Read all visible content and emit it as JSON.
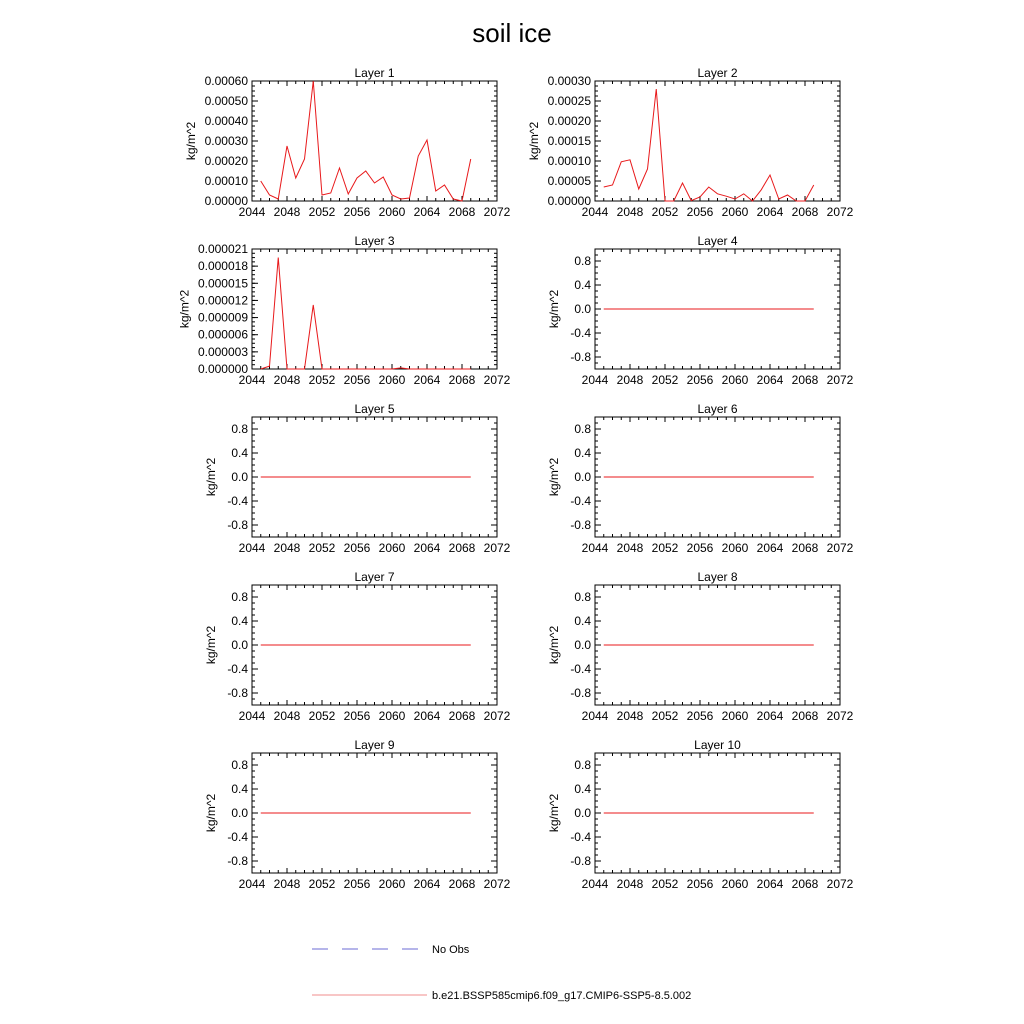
{
  "title": "soil ice",
  "chart_data": [
    {
      "type": "line",
      "title": "Layer 1",
      "ylabel": "kg/m^2",
      "xlim": [
        2044,
        2072
      ],
      "ylim": [
        0,
        0.0006
      ],
      "xticks": [
        "2044",
        "2048",
        "2052",
        "2056",
        "2060",
        "2064",
        "2068",
        "2072"
      ],
      "yticks": [
        "0.00000",
        "0.00010",
        "0.00020",
        "0.00030",
        "0.00040",
        "0.00050",
        "0.00060"
      ],
      "x": [
        2045,
        2046,
        2047,
        2048,
        2049,
        2050,
        2051,
        2052,
        2053,
        2054,
        2055,
        2056,
        2057,
        2058,
        2059,
        2060,
        2061,
        2062,
        2063,
        2064,
        2065,
        2066,
        2067,
        2068,
        2069
      ],
      "series": [
        {
          "name": "b.e21.BSSP585cmip6.f09_g17.CMIP6-SSP5-8.5.002",
          "color": "#e8191b",
          "values": [
            0.0001,
            3e-05,
            1e-05,
            0.000275,
            0.000115,
            0.00021,
            0.0006,
            3e-05,
            4e-05,
            0.000165,
            3.5e-05,
            0.000115,
            0.00015,
            9e-05,
            0.00012,
            3e-05,
            1e-05,
            1.5e-05,
            0.000225,
            0.000305,
            5e-05,
            8e-05,
            1e-05,
            0.0,
            0.00021
          ]
        }
      ]
    },
    {
      "type": "line",
      "title": "Layer 2",
      "ylabel": "kg/m^2",
      "xlim": [
        2044,
        2072
      ],
      "ylim": [
        0,
        0.0003
      ],
      "xticks": [
        "2044",
        "2048",
        "2052",
        "2056",
        "2060",
        "2064",
        "2068",
        "2072"
      ],
      "yticks": [
        "0.00000",
        "0.00005",
        "0.00010",
        "0.00015",
        "0.00020",
        "0.00025",
        "0.00030"
      ],
      "x": [
        2045,
        2046,
        2047,
        2048,
        2049,
        2050,
        2051,
        2052,
        2053,
        2054,
        2055,
        2056,
        2057,
        2058,
        2059,
        2060,
        2061,
        2062,
        2063,
        2064,
        2065,
        2066,
        2067,
        2068,
        2069
      ],
      "series": [
        {
          "name": "b.e21.BSSP585cmip6.f09_g17.CMIP6-SSP5-8.5.002",
          "color": "#e8191b",
          "values": [
            3.5e-05,
            4e-05,
            9.8e-05,
            0.000103,
            3e-05,
            8e-05,
            0.00028,
            0.0,
            0.0,
            4.5e-05,
            1e-06,
            1e-05,
            3.5e-05,
            1.8e-05,
            1.2e-05,
            5e-06,
            1.8e-05,
            0.0,
            2.8e-05,
            6.5e-05,
            5e-06,
            1.5e-05,
            0.0,
            0.0,
            4e-05
          ]
        }
      ]
    },
    {
      "type": "line",
      "title": "Layer 3",
      "ylabel": "kg/m^2",
      "xlim": [
        2044,
        2072
      ],
      "ylim": [
        0,
        2.1e-05
      ],
      "xticks": [
        "2044",
        "2048",
        "2052",
        "2056",
        "2060",
        "2064",
        "2068",
        "2072"
      ],
      "yticks": [
        "0.000000",
        "0.000003",
        "0.000006",
        "0.000009",
        "0.000012",
        "0.000015",
        "0.000018",
        "0.000021"
      ],
      "x": [
        2045,
        2046,
        2047,
        2048,
        2049,
        2050,
        2051,
        2052,
        2053,
        2054,
        2055,
        2056,
        2057,
        2058,
        2059,
        2060,
        2061,
        2062,
        2063,
        2064,
        2065,
        2066,
        2067,
        2068,
        2069
      ],
      "series": [
        {
          "name": "b.e21.BSSP585cmip6.f09_g17.CMIP6-SSP5-8.5.002",
          "color": "#e8191b",
          "values": [
            0.0,
            5e-07,
            1.95e-05,
            0.0,
            0.0,
            0.0,
            1.12e-05,
            0.0,
            0.0,
            0.0,
            0.0,
            0.0,
            0.0,
            0.0,
            0.0,
            0.0,
            2e-07,
            0.0,
            0.0,
            0.0,
            0.0,
            0.0,
            0.0,
            0.0,
            0.0
          ]
        }
      ]
    },
    {
      "type": "line",
      "title": "Layer 4",
      "ylabel": "kg/m^2",
      "xlim": [
        2044,
        2072
      ],
      "ylim": [
        -1,
        1
      ],
      "xticks": [
        "2044",
        "2048",
        "2052",
        "2056",
        "2060",
        "2064",
        "2068",
        "2072"
      ],
      "yticks": [
        "-0.8",
        "-0.4",
        "0.0",
        "0.4",
        "0.8"
      ],
      "x": [
        2045,
        2069
      ],
      "series": [
        {
          "name": "b.e21.BSSP585cmip6.f09_g17.CMIP6-SSP5-8.5.002",
          "color": "#e8191b",
          "values": [
            0,
            0
          ]
        }
      ]
    },
    {
      "type": "line",
      "title": "Layer 5",
      "ylabel": "kg/m^2",
      "xlim": [
        2044,
        2072
      ],
      "ylim": [
        -1,
        1
      ],
      "xticks": [
        "2044",
        "2048",
        "2052",
        "2056",
        "2060",
        "2064",
        "2068",
        "2072"
      ],
      "yticks": [
        "-0.8",
        "-0.4",
        "0.0",
        "0.4",
        "0.8"
      ],
      "x": [
        2045,
        2069
      ],
      "series": [
        {
          "name": "b.e21.BSSP585cmip6.f09_g17.CMIP6-SSP5-8.5.002",
          "color": "#e8191b",
          "values": [
            0,
            0
          ]
        }
      ]
    },
    {
      "type": "line",
      "title": "Layer 6",
      "ylabel": "kg/m^2",
      "xlim": [
        2044,
        2072
      ],
      "ylim": [
        -1,
        1
      ],
      "xticks": [
        "2044",
        "2048",
        "2052",
        "2056",
        "2060",
        "2064",
        "2068",
        "2072"
      ],
      "yticks": [
        "-0.8",
        "-0.4",
        "0.0",
        "0.4",
        "0.8"
      ],
      "x": [
        2045,
        2069
      ],
      "series": [
        {
          "name": "b.e21.BSSP585cmip6.f09_g17.CMIP6-SSP5-8.5.002",
          "color": "#e8191b",
          "values": [
            0,
            0
          ]
        }
      ]
    },
    {
      "type": "line",
      "title": "Layer 7",
      "ylabel": "kg/m^2",
      "xlim": [
        2044,
        2072
      ],
      "ylim": [
        -1,
        1
      ],
      "xticks": [
        "2044",
        "2048",
        "2052",
        "2056",
        "2060",
        "2064",
        "2068",
        "2072"
      ],
      "yticks": [
        "-0.8",
        "-0.4",
        "0.0",
        "0.4",
        "0.8"
      ],
      "x": [
        2045,
        2069
      ],
      "series": [
        {
          "name": "b.e21.BSSP585cmip6.f09_g17.CMIP6-SSP5-8.5.002",
          "color": "#e8191b",
          "values": [
            0,
            0
          ]
        }
      ]
    },
    {
      "type": "line",
      "title": "Layer 8",
      "ylabel": "kg/m^2",
      "xlim": [
        2044,
        2072
      ],
      "ylim": [
        -1,
        1
      ],
      "xticks": [
        "2044",
        "2048",
        "2052",
        "2056",
        "2060",
        "2064",
        "2068",
        "2072"
      ],
      "yticks": [
        "-0.8",
        "-0.4",
        "0.0",
        "0.4",
        "0.8"
      ],
      "x": [
        2045,
        2069
      ],
      "series": [
        {
          "name": "b.e21.BSSP585cmip6.f09_g17.CMIP6-SSP5-8.5.002",
          "color": "#e8191b",
          "values": [
            0,
            0
          ]
        }
      ]
    },
    {
      "type": "line",
      "title": "Layer 9",
      "ylabel": "kg/m^2",
      "xlim": [
        2044,
        2072
      ],
      "ylim": [
        -1,
        1
      ],
      "xticks": [
        "2044",
        "2048",
        "2052",
        "2056",
        "2060",
        "2064",
        "2068",
        "2072"
      ],
      "yticks": [
        "-0.8",
        "-0.4",
        "0.0",
        "0.4",
        "0.8"
      ],
      "x": [
        2045,
        2069
      ],
      "series": [
        {
          "name": "b.e21.BSSP585cmip6.f09_g17.CMIP6-SSP5-8.5.002",
          "color": "#e8191b",
          "values": [
            0,
            0
          ]
        }
      ]
    },
    {
      "type": "line",
      "title": "Layer 10",
      "ylabel": "kg/m^2",
      "xlim": [
        2044,
        2072
      ],
      "ylim": [
        -1,
        1
      ],
      "xticks": [
        "2044",
        "2048",
        "2052",
        "2056",
        "2060",
        "2064",
        "2068",
        "2072"
      ],
      "yticks": [
        "-0.8",
        "-0.4",
        "0.0",
        "0.4",
        "0.8"
      ],
      "x": [
        2045,
        2069
      ],
      "series": [
        {
          "name": "b.e21.BSSP585cmip6.f09_g17.CMIP6-SSP5-8.5.002",
          "color": "#e8191b",
          "values": [
            0,
            0
          ]
        }
      ]
    }
  ],
  "legend": [
    {
      "label": "No Obs",
      "style": "dashed",
      "color": "#6b6bd6"
    },
    {
      "label": "b.e21.BSSP585cmip6.f09_g17.CMIP6-SSP5-8.5.002",
      "style": "solid",
      "color": "#f28c8c"
    }
  ]
}
